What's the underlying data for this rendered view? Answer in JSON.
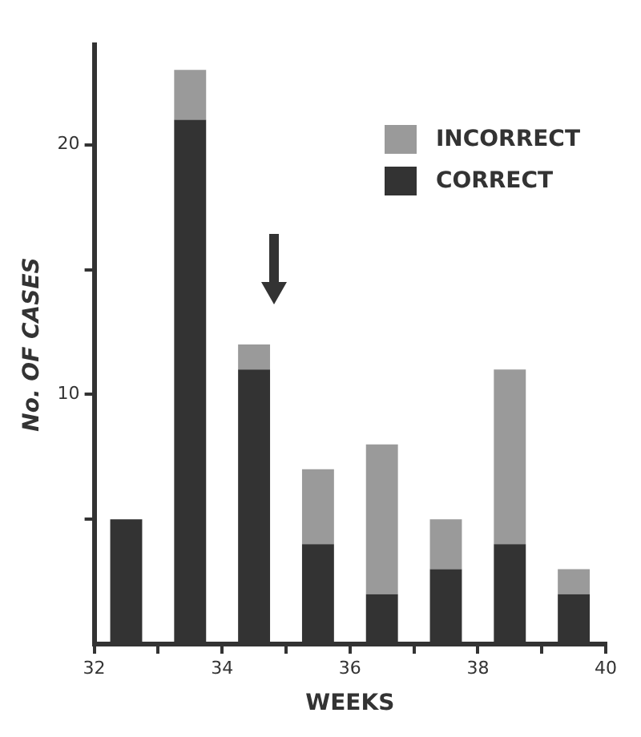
{
  "chart_data": {
    "type": "bar",
    "stacked": true,
    "xlabel": "WEEKS",
    "ylabel": "No. OF CASES",
    "x": [
      32.5,
      33.5,
      34.5,
      35.5,
      36.5,
      37.5,
      38.5,
      39.5
    ],
    "series": [
      {
        "name": "CORRECT",
        "color": "#333333",
        "values": [
          5,
          21,
          11,
          4,
          2,
          3,
          4,
          2
        ]
      },
      {
        "name": "INCORRECT",
        "color": "#9a9a9a",
        "values": [
          0,
          2,
          1,
          3,
          6,
          2,
          7,
          1
        ]
      }
    ],
    "xlim": [
      32,
      40
    ],
    "xticks": [
      32,
      {
        "value": 33,
        "label": null
      },
      34,
      {
        "value": 35,
        "label": null
      },
      36,
      {
        "value": 37,
        "label": null
      },
      38,
      {
        "value": 39,
        "label": null
      },
      40
    ],
    "ylim": [
      0,
      24
    ],
    "yticks": [
      {
        "value": 5,
        "label": null
      },
      10,
      {
        "value": 15,
        "label": null
      },
      20
    ],
    "legend": "top right",
    "grid": false
  }
}
